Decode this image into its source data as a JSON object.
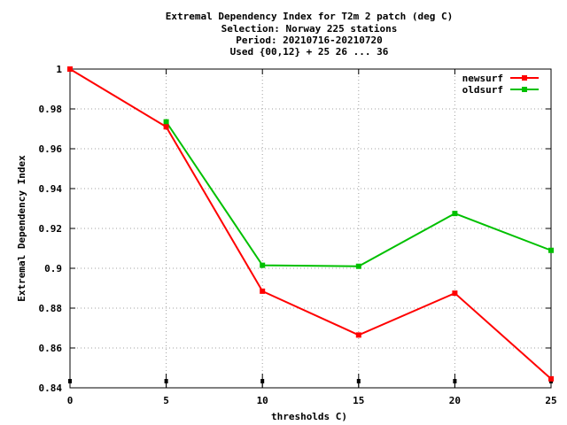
{
  "chart_data": {
    "type": "line",
    "title_lines": [
      "Extremal Dependency Index  for T2m 2 patch (deg C)",
      "Selection: Norway    225 stations",
      "Period: 20210716-20210720",
      "Used {00,12} + 25 26 ... 36"
    ],
    "xlabel": "thresholds C)",
    "ylabel": "Extremal Dependency Index",
    "xlim": [
      0,
      25
    ],
    "ylim": [
      0.84,
      1.0
    ],
    "x_ticks": [
      "0",
      "5",
      "10",
      "15",
      "20",
      "25"
    ],
    "y_ticks": [
      "0.84",
      "0.86",
      "0.88",
      "0.9",
      "0.92",
      "0.94",
      "0.96",
      "0.98",
      "1"
    ],
    "grid": true,
    "legend_position": "top-right",
    "series": [
      {
        "name": "newsurf",
        "color": "#ff0000",
        "x": [
          0,
          5,
          10,
          15,
          20,
          25
        ],
        "y": [
          1.0,
          0.971,
          0.8885,
          0.8665,
          0.8875,
          0.8445
        ]
      },
      {
        "name": "oldsurf",
        "color": "#00c000",
        "x": [
          5,
          10,
          15,
          20,
          25
        ],
        "y": [
          0.9735,
          0.9015,
          0.901,
          0.9275,
          0.909
        ]
      }
    ],
    "bottom_markers_x": [
      0,
      5,
      10,
      15,
      20,
      25
    ]
  }
}
